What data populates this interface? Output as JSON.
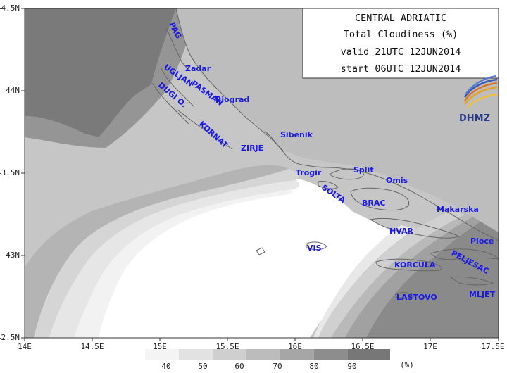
{
  "info_box": {
    "region": "CENTRAL ADRIATIC",
    "parameter": "Total Cloudiness (%)",
    "valid": "valid 21UTC 12JUN2014",
    "start": "start 06UTC 12JUN2014"
  },
  "logo": {
    "text": "DHMZ",
    "icon": "dhmz-logo-icon"
  },
  "axes": {
    "lat_labels": [
      "44.5N",
      "44N",
      "43.5N",
      "43N",
      "42.5N"
    ],
    "lon_labels": [
      "14E",
      "14.5E",
      "15E",
      "15.5E",
      "16E",
      "16.5E",
      "17E",
      "17.5E"
    ]
  },
  "places": [
    {
      "name": "PAG"
    },
    {
      "name": "Zadar"
    },
    {
      "name": "UGLJAN"
    },
    {
      "name": "PASMAN"
    },
    {
      "name": "Biograd"
    },
    {
      "name": "DUGI O."
    },
    {
      "name": "KORNAT"
    },
    {
      "name": "Sibenik"
    },
    {
      "name": "ZIRJE"
    },
    {
      "name": "Trogir"
    },
    {
      "name": "Split"
    },
    {
      "name": "Omis"
    },
    {
      "name": "SOLTA"
    },
    {
      "name": "BRAC"
    },
    {
      "name": "Makarska"
    },
    {
      "name": "HVAR"
    },
    {
      "name": "VIS"
    },
    {
      "name": "Ploce"
    },
    {
      "name": "PELJESAC"
    },
    {
      "name": "KORCULA"
    },
    {
      "name": "LASTOVO"
    },
    {
      "name": "MLJET"
    }
  ],
  "legend": {
    "levels": [
      "40",
      "50",
      "60",
      "70",
      "80",
      "90"
    ],
    "unit": "(%)",
    "colors": [
      "#f4f4f4",
      "#e2e2e2",
      "#cfcfcf",
      "#bcbcbc",
      "#a6a6a6",
      "#8d8d8d",
      "#777777"
    ]
  }
}
